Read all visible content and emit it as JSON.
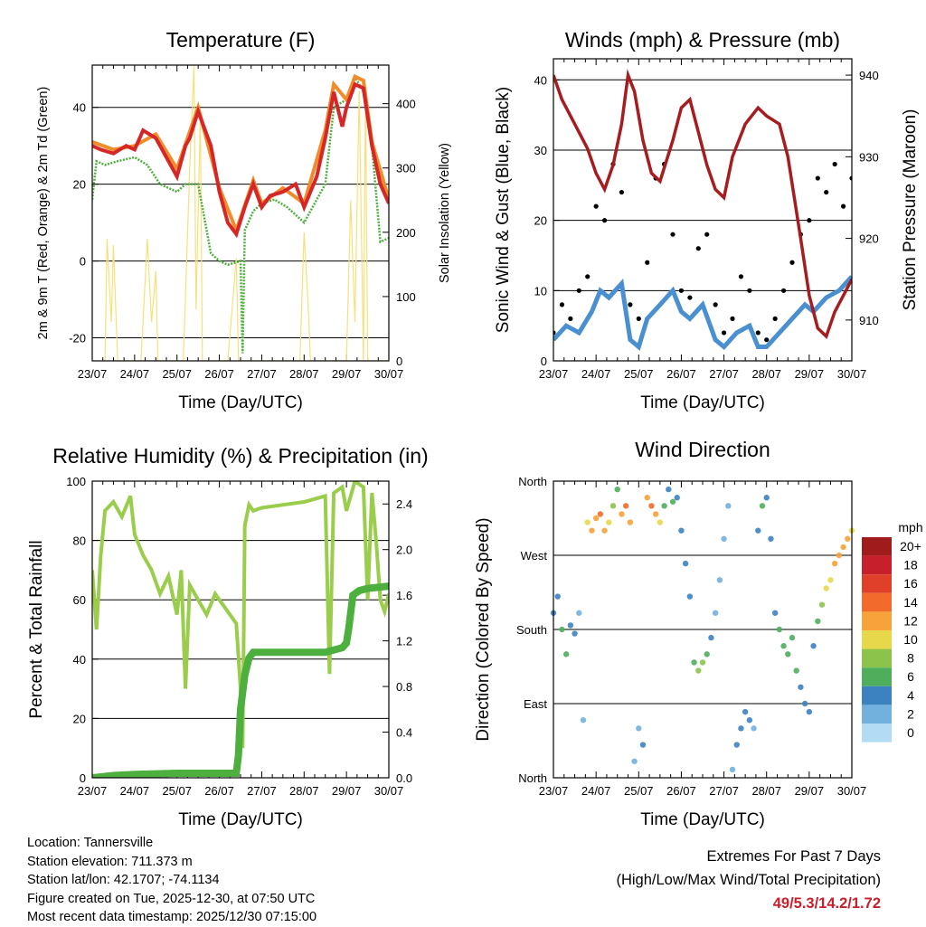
{
  "days": [
    "23/07",
    "24/07",
    "25/07",
    "26/07",
    "27/07",
    "28/07",
    "29/07",
    "30/07"
  ],
  "xlabel": "Time (Day/UTC)",
  "colors": {
    "temp2m": "#d62728",
    "temp9m": "#f08c2a",
    "dewpoint": "#4daf3c",
    "solar": "#f7e07a",
    "pressure": "#a51d20",
    "gust": "#000000",
    "wind": "#4a90d0",
    "rh": "#9acd4b",
    "rain": "#4caf3e",
    "extremes": "#c8202a"
  },
  "chart_data": [
    {
      "id": "temperature",
      "type": "line",
      "title": "Temperature (F)",
      "xlabel": "Time (Day/UTC)",
      "ylabel": "2m & 9m T (Red, Orange) & 2m Td (Green)",
      "ylabel_right": "Solar Insolation (Yellow)",
      "ylim": [
        -26,
        51
      ],
      "ylim_right": [
        0,
        460
      ],
      "yticks": [
        -20,
        0,
        20,
        40
      ],
      "yticks_right": [
        0,
        100,
        200,
        300,
        400
      ],
      "grid_y": [
        -20,
        0,
        20,
        40
      ],
      "series": [
        {
          "name": "2m T (Red)",
          "x": [
            0,
            0.2,
            0.5,
            0.8,
            1.0,
            1.2,
            1.5,
            1.8,
            2.0,
            2.2,
            2.3,
            2.5,
            2.8,
            3.0,
            3.2,
            3.4,
            3.6,
            3.8,
            4.0,
            4.2,
            4.5,
            4.8,
            5.0,
            5.3,
            5.5,
            5.7,
            5.9,
            6.0,
            6.2,
            6.4,
            6.6,
            6.8,
            7.0
          ],
          "y": [
            30,
            29,
            28,
            30,
            29,
            34,
            32,
            26,
            22,
            30,
            32,
            39,
            30,
            18,
            10,
            7,
            14,
            20,
            14,
            17,
            18,
            20,
            14,
            22,
            32,
            44,
            35,
            40,
            46,
            45,
            30,
            20,
            15
          ]
        },
        {
          "name": "9m T (Orange)",
          "x": [
            0,
            0.5,
            1.0,
            1.5,
            2.0,
            2.5,
            3.0,
            3.4,
            3.8,
            4.0,
            4.5,
            5.0,
            5.5,
            5.7,
            6.0,
            6.2,
            6.4,
            6.6,
            7.0
          ],
          "y": [
            31,
            29,
            30,
            33,
            24,
            40,
            19,
            8,
            21,
            15,
            19,
            15,
            34,
            46,
            42,
            48,
            47,
            31,
            16
          ]
        },
        {
          "name": "2m Td (Green)",
          "x": [
            0,
            0.1,
            0.3,
            0.6,
            1.0,
            1.3,
            1.6,
            1.8,
            2.0,
            2.2,
            2.5,
            2.8,
            3.0,
            3.2,
            3.5,
            3.55,
            3.6,
            3.8,
            4.0,
            4.3,
            4.6,
            5.0,
            5.3,
            5.5,
            5.7,
            6.0,
            6.2,
            6.4,
            6.6,
            6.8,
            7.0
          ],
          "y": [
            16,
            26,
            25,
            26,
            27,
            25,
            20,
            19,
            18,
            20,
            20,
            2,
            0,
            -1,
            0,
            -24,
            8,
            13,
            15,
            16,
            14,
            10,
            16,
            20,
            40,
            42,
            48,
            44,
            30,
            5,
            6
          ]
        },
        {
          "name": "Solar Insolation (Yellow)",
          "axis": "right",
          "x": [
            0,
            0.3,
            0.35,
            0.45,
            0.5,
            0.6,
            0.65,
            0.7,
            1.1,
            1.15,
            1.3,
            1.4,
            1.5,
            1.55,
            1.65,
            2.1,
            2.15,
            2.3,
            2.4,
            2.45,
            2.55,
            2.6,
            3.1,
            3.2,
            3.4,
            3.45,
            3.6,
            4.9,
            5.0,
            5.1,
            5.15,
            5.2,
            5.9,
            6.0,
            6.1,
            6.2,
            6.3,
            6.4,
            6.45,
            6.5,
            7.0
          ],
          "y": [
            0,
            0,
            190,
            60,
            180,
            0,
            0,
            0,
            0,
            0,
            190,
            60,
            140,
            0,
            0,
            0,
            0,
            300,
            460,
            80,
            380,
            0,
            0,
            0,
            160,
            0,
            0,
            0,
            200,
            80,
            0,
            0,
            0,
            0,
            250,
            60,
            420,
            0,
            420,
            0,
            0
          ]
        }
      ]
    },
    {
      "id": "winds",
      "type": "line",
      "title": "Winds (mph) & Pressure (mb)",
      "xlabel": "Time (Day/UTC)",
      "ylabel": "Sonic Wind & Gust (Blue, Black)",
      "ylabel_right": "Station Pressure (Maroon)",
      "ylim": [
        0,
        43
      ],
      "ylim_right": [
        905,
        942
      ],
      "yticks": [
        0,
        10,
        20,
        30,
        40
      ],
      "yticks_right": [
        910,
        920,
        930,
        940
      ],
      "grid_y": [
        10,
        20,
        30,
        40
      ],
      "series": [
        {
          "name": "Station Pressure (Maroon)",
          "axis": "right",
          "x": [
            0,
            0.2,
            0.5,
            0.8,
            1.0,
            1.2,
            1.4,
            1.6,
            1.75,
            1.9,
            2.1,
            2.3,
            2.5,
            2.8,
            3.0,
            3.2,
            3.4,
            3.6,
            3.8,
            4.0,
            4.2,
            4.5,
            4.8,
            5.0,
            5.3,
            5.5,
            5.8,
            6.0,
            6.2,
            6.4,
            6.6,
            6.8,
            7.0
          ],
          "y": [
            940,
            937,
            934,
            931,
            928,
            926,
            929,
            934,
            940,
            938,
            932,
            928,
            927,
            932,
            936,
            937,
            933,
            929,
            926,
            925,
            930,
            934,
            936,
            935,
            934,
            930,
            920,
            913,
            909,
            908,
            911,
            913,
            915
          ]
        },
        {
          "name": "Sonic Wind (Blue)",
          "x": [
            0,
            0.3,
            0.6,
            0.9,
            1.1,
            1.3,
            1.6,
            1.8,
            2.0,
            2.2,
            2.5,
            2.8,
            3.0,
            3.2,
            3.5,
            3.8,
            4.0,
            4.3,
            4.6,
            4.8,
            5.0,
            5.3,
            5.6,
            5.9,
            6.1,
            6.4,
            6.7,
            7.0
          ],
          "y": [
            3,
            5,
            4,
            7,
            10,
            9,
            11,
            3,
            2,
            6,
            8,
            10,
            7,
            6,
            8,
            3,
            2,
            4,
            5,
            2,
            2,
            4,
            6,
            8,
            7,
            9,
            10,
            12
          ]
        },
        {
          "name": "Gust (Black)",
          "x": [
            0,
            0.2,
            0.4,
            0.6,
            0.8,
            1.0,
            1.2,
            1.4,
            1.6,
            1.8,
            2.0,
            2.2,
            2.4,
            2.6,
            2.8,
            3.0,
            3.2,
            3.4,
            3.6,
            3.8,
            4.0,
            4.2,
            4.4,
            4.6,
            4.8,
            5.0,
            5.2,
            5.4,
            5.6,
            5.8,
            6.0,
            6.2,
            6.4,
            6.6,
            6.8,
            7.0
          ],
          "y": [
            4,
            8,
            6,
            10,
            12,
            22,
            20,
            28,
            24,
            8,
            6,
            14,
            26,
            28,
            18,
            10,
            9,
            16,
            18,
            8,
            4,
            6,
            12,
            10,
            4,
            3,
            6,
            10,
            14,
            18,
            20,
            26,
            24,
            28,
            22,
            26
          ]
        }
      ]
    },
    {
      "id": "humidity",
      "type": "line",
      "title": "Relative Humidity (%) & Precipitation (in)",
      "xlabel": "Time (Day/UTC)",
      "ylabel": "Percent & Total Rainfall",
      "ylim": [
        0,
        100
      ],
      "ylim_right": [
        0,
        2.6
      ],
      "yticks": [
        0,
        20,
        40,
        60,
        80,
        100
      ],
      "yticks_right": [
        0.0,
        0.4,
        0.8,
        1.2,
        1.6,
        2.0,
        2.4
      ],
      "grid_y": [
        20,
        40,
        60,
        80,
        100
      ],
      "series": [
        {
          "name": "Relative Humidity",
          "x": [
            0,
            0.1,
            0.2,
            0.3,
            0.5,
            0.7,
            0.9,
            1.0,
            1.2,
            1.4,
            1.6,
            1.8,
            2.0,
            2.1,
            2.2,
            2.3,
            2.5,
            2.7,
            2.9,
            3.0,
            3.2,
            3.4,
            3.5,
            3.55,
            3.6,
            3.7,
            3.8,
            4.0,
            4.5,
            5.0,
            5.5,
            5.6,
            5.7,
            5.9,
            6.0,
            6.2,
            6.4,
            6.5,
            6.6,
            6.7,
            6.8,
            6.9,
            7.0
          ],
          "y": [
            70,
            50,
            75,
            90,
            93,
            88,
            95,
            82,
            75,
            70,
            62,
            68,
            55,
            70,
            30,
            65,
            60,
            55,
            62,
            60,
            56,
            52,
            30,
            10,
            85,
            92,
            90,
            91,
            92,
            93,
            95,
            35,
            96,
            98,
            90,
            100,
            98,
            60,
            96,
            80,
            60,
            56,
            62
          ]
        },
        {
          "name": "Total Rainfall",
          "axis": "right",
          "x": [
            0,
            0.5,
            1.0,
            2.0,
            3.0,
            3.4,
            3.45,
            3.5,
            3.6,
            3.7,
            3.8,
            4.0,
            5.0,
            5.5,
            5.9,
            6.0,
            6.05,
            6.15,
            6.3,
            6.5,
            7.0
          ],
          "y": [
            0.0,
            0.02,
            0.03,
            0.04,
            0.04,
            0.04,
            0.2,
            0.6,
            0.9,
            1.05,
            1.1,
            1.1,
            1.1,
            1.1,
            1.14,
            1.18,
            1.3,
            1.6,
            1.64,
            1.66,
            1.68
          ]
        }
      ]
    },
    {
      "id": "winddir",
      "type": "scatter",
      "title": "Wind Direction",
      "xlabel": "Time (Day/UTC)",
      "ylabel": "Direction (Colored By Speed)",
      "ylim": [
        0,
        360
      ],
      "yticks": [
        "North",
        "East",
        "South",
        "West",
        "North"
      ],
      "ytick_values": [
        0,
        90,
        180,
        270,
        360
      ],
      "colorbar": {
        "title": "mph",
        "labels": [
          "20+",
          "18",
          "16",
          "14",
          "12",
          "10",
          "8",
          "6",
          "4",
          "2",
          "0"
        ],
        "colors": [
          "#a11b1b",
          "#c8202a",
          "#e0402a",
          "#f26b2c",
          "#f7a23a",
          "#e6d84a",
          "#8cc34a",
          "#4fae5c",
          "#3c82c0",
          "#72b0de",
          "#b3dcf4"
        ]
      },
      "series": [
        {
          "name": "direction",
          "x": [
            0.0,
            0.1,
            0.2,
            0.3,
            0.4,
            0.5,
            0.6,
            0.7,
            0.8,
            0.9,
            1.0,
            1.1,
            1.2,
            1.3,
            1.4,
            1.5,
            1.6,
            1.7,
            1.8,
            1.9,
            2.0,
            2.1,
            2.2,
            2.3,
            2.4,
            2.5,
            2.6,
            2.7,
            2.8,
            2.9,
            3.0,
            3.1,
            3.2,
            3.3,
            3.4,
            3.5,
            3.6,
            3.7,
            3.8,
            3.9,
            4.0,
            4.1,
            4.2,
            4.3,
            4.4,
            4.5,
            4.6,
            4.7,
            4.8,
            4.9,
            5.0,
            5.1,
            5.2,
            5.3,
            5.4,
            5.5,
            5.6,
            5.7,
            5.8,
            5.9,
            6.0,
            6.1,
            6.2,
            6.3,
            6.4,
            6.5,
            6.6,
            6.7,
            6.8,
            6.9,
            7.0
          ],
          "y": [
            200,
            220,
            180,
            150,
            185,
            175,
            200,
            70,
            310,
            300,
            315,
            320,
            300,
            310,
            330,
            350,
            320,
            330,
            310,
            20,
            60,
            40,
            340,
            330,
            320,
            310,
            330,
            350,
            335,
            340,
            300,
            260,
            220,
            140,
            130,
            140,
            150,
            170,
            200,
            240,
            290,
            330,
            10,
            40,
            60,
            80,
            70,
            60,
            300,
            330,
            340,
            290,
            200,
            180,
            160,
            150,
            170,
            130,
            110,
            90,
            80,
            160,
            190,
            210,
            230,
            240,
            260,
            270,
            280,
            290,
            300
          ],
          "speed": [
            3,
            4,
            5,
            6,
            4,
            3,
            2,
            2,
            10,
            12,
            11,
            13,
            12,
            9,
            8,
            6,
            12,
            14,
            11,
            2,
            2,
            3,
            12,
            13,
            11,
            9,
            6,
            4,
            5,
            4,
            4,
            3,
            3,
            6,
            7,
            7,
            5,
            3,
            2,
            2,
            2,
            2,
            2,
            3,
            3,
            4,
            3,
            2,
            4,
            5,
            4,
            3,
            3,
            5,
            6,
            6,
            5,
            5,
            4,
            4,
            4,
            4,
            5,
            8,
            9,
            10,
            11,
            12,
            12,
            11,
            10
          ]
        }
      ]
    }
  ],
  "info": {
    "location": "Location: Tannersville",
    "elevation": "Station elevation: 711.373 m",
    "latlon": "Station lat/lon: 42.1707; -74.1134",
    "created": "Figure created on Tue, 2025-12-30, at 07:50 UTC",
    "recent": "Most recent data timestamp: 2025/12/30 07:15:00"
  },
  "extremes": {
    "title": "Extremes For Past 7 Days",
    "subtitle": "(High/Low/Max Wind/Total Precipitation)",
    "values": "49/5.3/14.2/1.72"
  }
}
